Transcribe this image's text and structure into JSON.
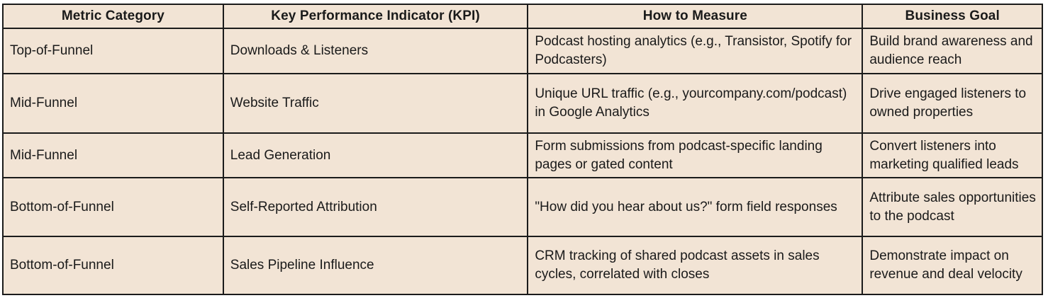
{
  "table": {
    "title_semantic": "podcast-kpi-measurement-table",
    "colors": {
      "cell_background": "#f2e4d5",
      "border": "#1b1b1b",
      "text": "#1a1a1a",
      "page_background": "#ffffff"
    },
    "headers": [
      "Metric Category",
      "Key Performance Indicator (KPI)",
      "How to Measure",
      "Business Goal"
    ],
    "rows": [
      {
        "cells": [
          "Top-of-Funnel",
          "Downloads & Listeners",
          "Podcast hosting analytics (e.g., Transistor, Spotify for Podcasters)",
          "Build brand awareness and audience reach"
        ]
      },
      {
        "cells": [
          "Mid-Funnel",
          "Website Traffic",
          "Unique URL traffic (e.g., yourcompany.com/podcast) in Google Analytics",
          "Drive engaged listeners to owned properties"
        ]
      },
      {
        "cells": [
          "Mid-Funnel",
          "Lead Generation",
          "Form submissions from podcast-specific landing pages or gated content",
          "Convert listeners into marketing qualified leads"
        ]
      },
      {
        "cells": [
          "Bottom-of-Funnel",
          "Self-Reported Attribution",
          "\"How did you hear about us?\" form field responses",
          "Attribute sales opportunities to the podcast"
        ]
      },
      {
        "cells": [
          "Bottom-of-Funnel",
          "Sales Pipeline Influence",
          "CRM tracking of shared podcast assets in sales cycles, correlated with closes",
          "Demonstrate impact on revenue and deal velocity"
        ]
      }
    ]
  }
}
